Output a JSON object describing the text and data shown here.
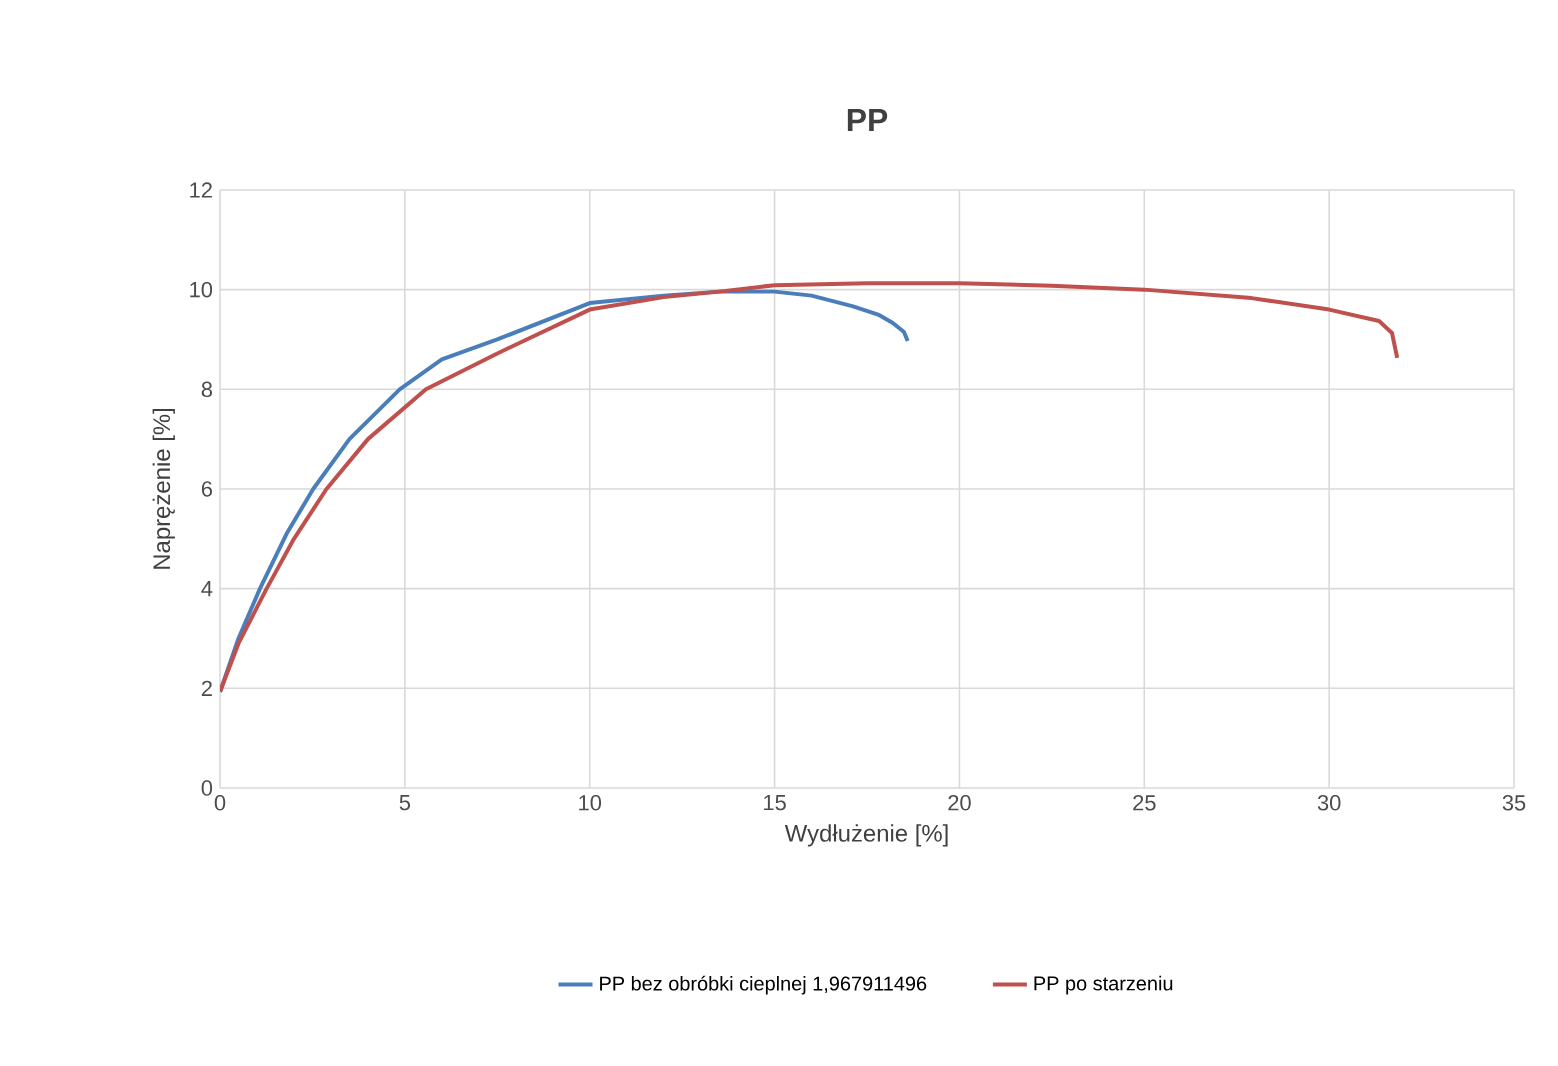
{
  "chart_data": {
    "type": "line",
    "title": "PP",
    "xlabel": "Wydłużenie [%]",
    "ylabel": "Naprężenie [%]",
    "xlim": [
      0,
      35
    ],
    "ylim": [
      0,
      12
    ],
    "xticks": [
      0,
      5,
      10,
      15,
      20,
      25,
      30,
      35
    ],
    "yticks": [
      0,
      2,
      4,
      6,
      8,
      10,
      12
    ],
    "grid": true,
    "legend": "bottom",
    "marker": "none",
    "line_style": "solid",
    "series": [
      {
        "name": "PP bez obróbki cieplnej 1,967911496",
        "color": "#4a7ebb",
        "x": [
          0,
          0.5,
          1.08,
          1.8,
          2.52,
          3.5,
          4.86,
          6,
          7.5,
          10,
          12,
          13.5,
          15,
          16,
          17.1,
          17.8,
          18.2,
          18.5,
          18.6
        ],
        "values": [
          1.93,
          3.0,
          4.0,
          5.1,
          6.0,
          7.0,
          8.0,
          8.6,
          9.0,
          9.73,
          9.88,
          9.96,
          9.96,
          9.88,
          9.67,
          9.5,
          9.33,
          9.15,
          8.97
        ]
      },
      {
        "name": "PP po starzeniu",
        "color": "#c0504d",
        "x": [
          0,
          0.5,
          1.26,
          2.0,
          2.88,
          4.0,
          5.57,
          7.5,
          10,
          12,
          13.5,
          15,
          17.5,
          20,
          22.5,
          25,
          27.9,
          30,
          31.35,
          31.7,
          31.84
        ],
        "values": [
          1.93,
          2.9,
          4.0,
          5.0,
          6.0,
          7.0,
          8.0,
          8.72,
          9.6,
          9.85,
          9.96,
          10.09,
          10.13,
          10.13,
          10.08,
          10.0,
          9.83,
          9.6,
          9.37,
          9.13,
          8.63
        ]
      }
    ]
  }
}
